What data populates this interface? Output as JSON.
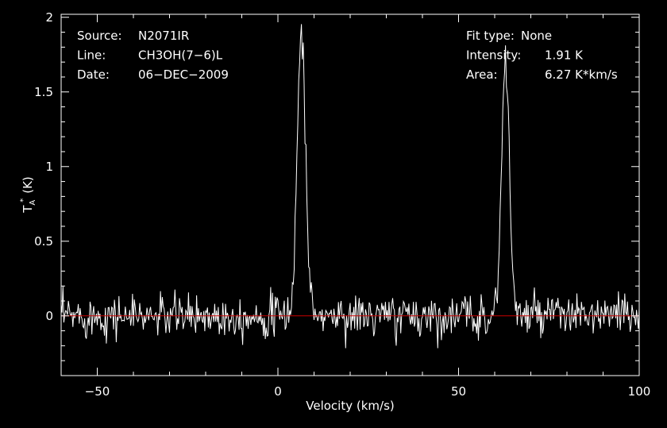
{
  "chart_data": {
    "type": "line",
    "title": "",
    "xlabel": "Velocity (km/s)",
    "ylabel": "(K)",
    "ylabel_symbol": "T",
    "ylabel_sub": "A",
    "ylabel_sup": "*",
    "xlim": [
      -60,
      100
    ],
    "ylim": [
      -0.4,
      2.02
    ],
    "x_ticks": [
      -50,
      0,
      50,
      100
    ],
    "x_tick_labels": [
      "−50",
      "0",
      "50",
      "100"
    ],
    "y_ticks": [
      0,
      0.5,
      1,
      1.5,
      2
    ],
    "y_tick_labels": [
      "0",
      "0.5",
      "1",
      "1.5",
      "2"
    ],
    "grid": false,
    "baseline": 0,
    "noise_rms": 0.07,
    "velocity_step": 0.25,
    "peaks": [
      {
        "center": 6.5,
        "amplitude": 1.91,
        "fwhm": 2.7
      },
      {
        "center": 63.0,
        "amplitude": 1.68,
        "fwhm": 2.6
      }
    ],
    "colors": {
      "background": "#000000",
      "spectrum": "#ffffff",
      "baseline": "#cc0000",
      "frame": "#ffffff"
    },
    "info_left": [
      {
        "label": "Source:",
        "value": "N2071IR"
      },
      {
        "label": "Line:",
        "value": "CH3OH(7−6)L"
      },
      {
        "label": "Date:",
        "value": "06−DEC−2009"
      }
    ],
    "info_right": [
      {
        "label": "Fit type:",
        "value": "None"
      },
      {
        "label": "Intensity:",
        "value": "1.91 K"
      },
      {
        "label": "Area:",
        "value": "6.27 K*km/s"
      }
    ]
  }
}
